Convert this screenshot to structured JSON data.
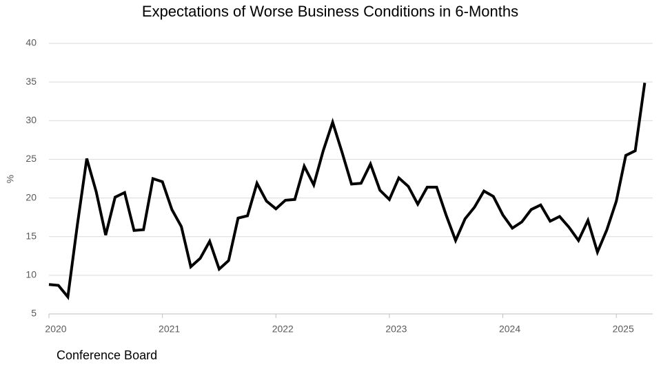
{
  "chart_data": {
    "type": "line",
    "title": "Expectations of Worse Business Conditions in 6-Months",
    "y_label": "%",
    "source": "Conference Board",
    "categories": [
      "2020",
      null,
      null,
      null,
      null,
      null,
      null,
      null,
      null,
      null,
      null,
      null,
      "2021",
      null,
      null,
      null,
      null,
      null,
      null,
      null,
      null,
      null,
      null,
      null,
      "2022",
      null,
      null,
      null,
      null,
      null,
      null,
      null,
      null,
      null,
      null,
      null,
      "2023",
      null,
      null,
      null,
      null,
      null,
      null,
      null,
      null,
      null,
      null,
      null,
      "2024",
      null,
      null,
      null,
      null,
      null,
      null,
      null,
      null,
      null,
      null,
      null,
      "2025",
      null,
      null,
      null
    ],
    "series": [
      {
        "name": "Worse business conditions",
        "color": "#000000",
        "values": [
          8.8,
          8.7,
          7.2,
          16.5,
          25.1,
          20.8,
          15.2,
          20.1,
          20.7,
          15.8,
          15.9,
          22.5,
          22.1,
          18.5,
          16.3,
          11.1,
          12.2,
          14.4,
          10.8,
          11.9,
          17.4,
          17.7,
          21.9,
          19.6,
          18.6,
          19.7,
          19.8,
          24.1,
          21.7,
          26.1,
          29.8,
          25.9,
          21.8,
          21.9,
          24.4,
          21.0,
          19.8,
          22.6,
          21.5,
          19.2,
          21.4,
          21.4,
          17.8,
          14.5,
          17.3,
          18.8,
          20.9,
          20.2,
          17.8,
          16.1,
          16.9,
          18.5,
          19.1,
          17.0,
          17.6,
          16.2,
          14.5,
          17.1,
          13.0,
          15.9,
          19.6,
          25.5,
          26.1,
          34.9
        ]
      }
    ],
    "ylim": [
      5,
      40
    ],
    "yticks": [
      5,
      10,
      15,
      20,
      25,
      30,
      35,
      40
    ],
    "grid": true
  }
}
